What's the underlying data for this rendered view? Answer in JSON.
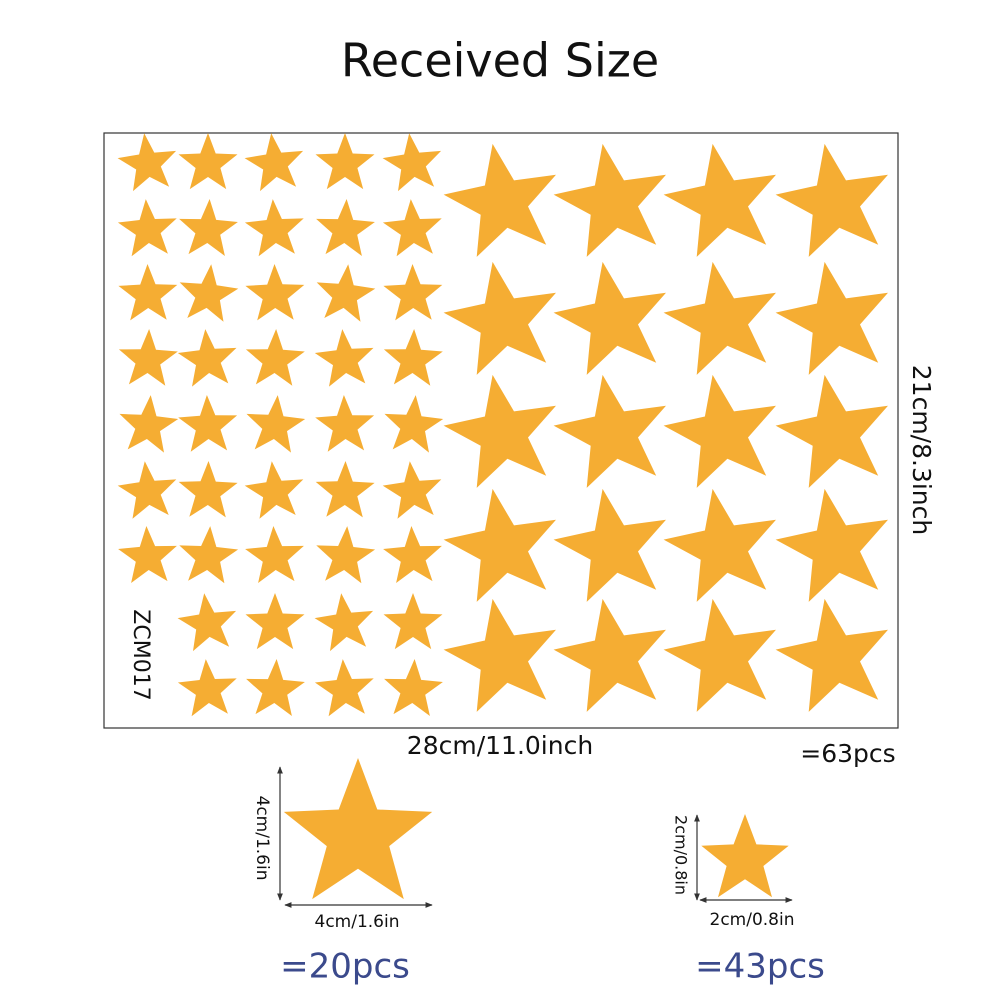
{
  "header": {
    "title": "Received Size"
  },
  "sheet": {
    "code": "ZCM017",
    "width_label": "28cm/11.0inch",
    "height_label": "21cm/8.3inch",
    "total": "=63pcs"
  },
  "large_star": {
    "height_label": "4cm/1.6in",
    "width_label": "4cm/1.6in",
    "count": "=20pcs"
  },
  "small_star": {
    "height_label": "2cm/0.8in",
    "width_label": "2cm/0.8in",
    "count": "=43pcs"
  }
}
